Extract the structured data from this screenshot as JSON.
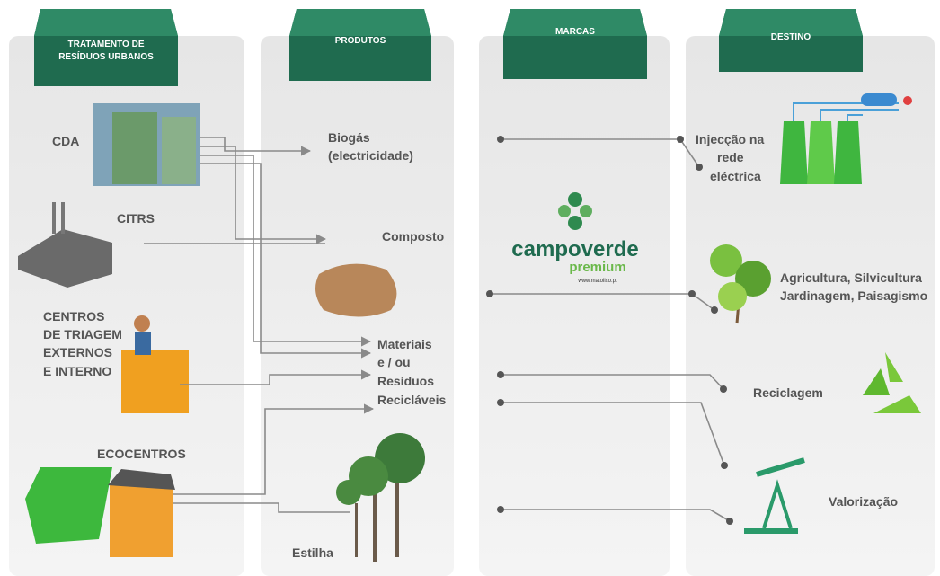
{
  "columns": [
    {
      "title": [
        "TRATAMENTO DE",
        "RESÍDUOS URBANOS"
      ]
    },
    {
      "title": [
        "PRODUTOS"
      ]
    },
    {
      "title": [
        "MARCAS"
      ]
    },
    {
      "title": [
        "DESTINO"
      ]
    }
  ],
  "sources": [
    {
      "lines": [
        "CDA"
      ]
    },
    {
      "lines": [
        "CITRS"
      ]
    },
    {
      "lines": [
        "CENTROS",
        "DE TRIAGEM",
        "EXTERNOS",
        "E INTERNO"
      ]
    },
    {
      "lines": [
        "ECOCENTROS"
      ]
    }
  ],
  "products": [
    {
      "lines": [
        "Biogás",
        "(electricidade)"
      ]
    },
    {
      "lines": [
        "Composto"
      ]
    },
    {
      "lines": [
        "Materiais",
        "e / ou",
        "Resíduos",
        "Recicláveis"
      ]
    },
    {
      "lines": [
        "Estilha"
      ]
    }
  ],
  "brand": {
    "name": "campoverde",
    "tagline": "premium",
    "url": "www.matolixo.pt"
  },
  "destinations": [
    {
      "lines": [
        "Injecção na",
        "rede",
        "eléctrica"
      ]
    },
    {
      "lines": [
        "Agricultura, Silvicultura",
        "Jardinagem, Paisagismo"
      ]
    },
    {
      "lines": [
        "Reciclagem"
      ]
    },
    {
      "lines": [
        "Valorização"
      ]
    }
  ]
}
